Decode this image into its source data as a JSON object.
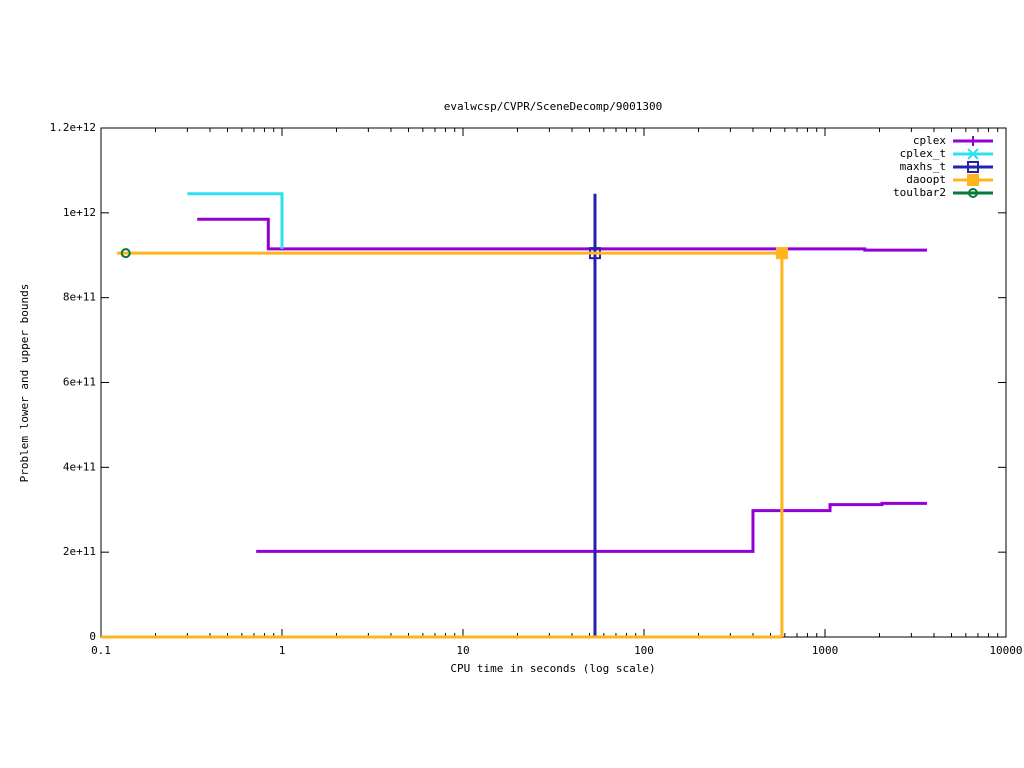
{
  "chart_data": {
    "type": "line",
    "title": "evalwcsp/CVPR/SceneDecomp/9001300",
    "x_label": "CPU time in seconds (log scale)",
    "y_label": "Problem lower and upper bounds",
    "xlog": true,
    "xlim": [
      0.1,
      10000
    ],
    "xticks": [
      0.1,
      1,
      10,
      100,
      1000,
      10000
    ],
    "ylim": [
      0,
      1200000000000
    ],
    "yticks": [
      0,
      {
        "value": 200000000000,
        "label": "2e+11"
      },
      {
        "value": 400000000000,
        "label": "4e+11"
      },
      {
        "value": 600000000000,
        "label": "6e+11"
      },
      {
        "value": 800000000000,
        "label": "8e+11"
      },
      {
        "value": 1000000000000,
        "label": "1e+12"
      },
      {
        "value": 1200000000000,
        "label": "1.2e+12"
      }
    ],
    "legend": "top-right",
    "series": [
      {
        "name": "cplex",
        "color": "#9400d3",
        "marker": "plus",
        "x": [
          0.34,
          0.84,
          0.84,
          1660,
          1660,
          3660,
          null,
          0.72,
          400,
          400,
          1066,
          1066,
          2065,
          2065,
          3660
        ],
        "values": [
          985000000000,
          985000000000,
          915000000000,
          915000000000,
          912000000000,
          912000000000,
          null,
          202000000000,
          202000000000,
          298000000000,
          298000000000,
          312000000000,
          312000000000,
          315000000000,
          315000000000
        ],
        "points": {
          "x": [],
          "values": []
        }
      },
      {
        "name": "cplex_t",
        "color": "#2ee0ee",
        "marker": "cross",
        "x": [
          0.3,
          1.0,
          1.0
        ],
        "values": [
          1045000000000,
          1045000000000,
          915000000000
        ],
        "points": {
          "x": [],
          "values": []
        }
      },
      {
        "name": "maxhs_t",
        "color": "#2222aa",
        "marker": "square",
        "x": [
          53.6,
          53.6
        ],
        "values": [
          0,
          1045000000000
        ],
        "points": {
          "x": [
            53.6
          ],
          "values": [
            905000000000
          ]
        }
      },
      {
        "name": "daoopt",
        "color": "#ffb41e",
        "marker": "filled-square",
        "x": [
          0.1226,
          578,
          578,
          null,
          0.1,
          578
        ],
        "values": [
          905000000000,
          905000000000,
          0,
          null,
          0,
          0
        ],
        "points": {
          "x": [
            578
          ],
          "values": [
            905000000000
          ]
        }
      },
      {
        "name": "toulbar2",
        "color": "#07793b",
        "marker": "circle",
        "x": [],
        "values": [],
        "points": {
          "x": [
            0.137
          ],
          "values": [
            905000000000
          ]
        }
      }
    ]
  }
}
